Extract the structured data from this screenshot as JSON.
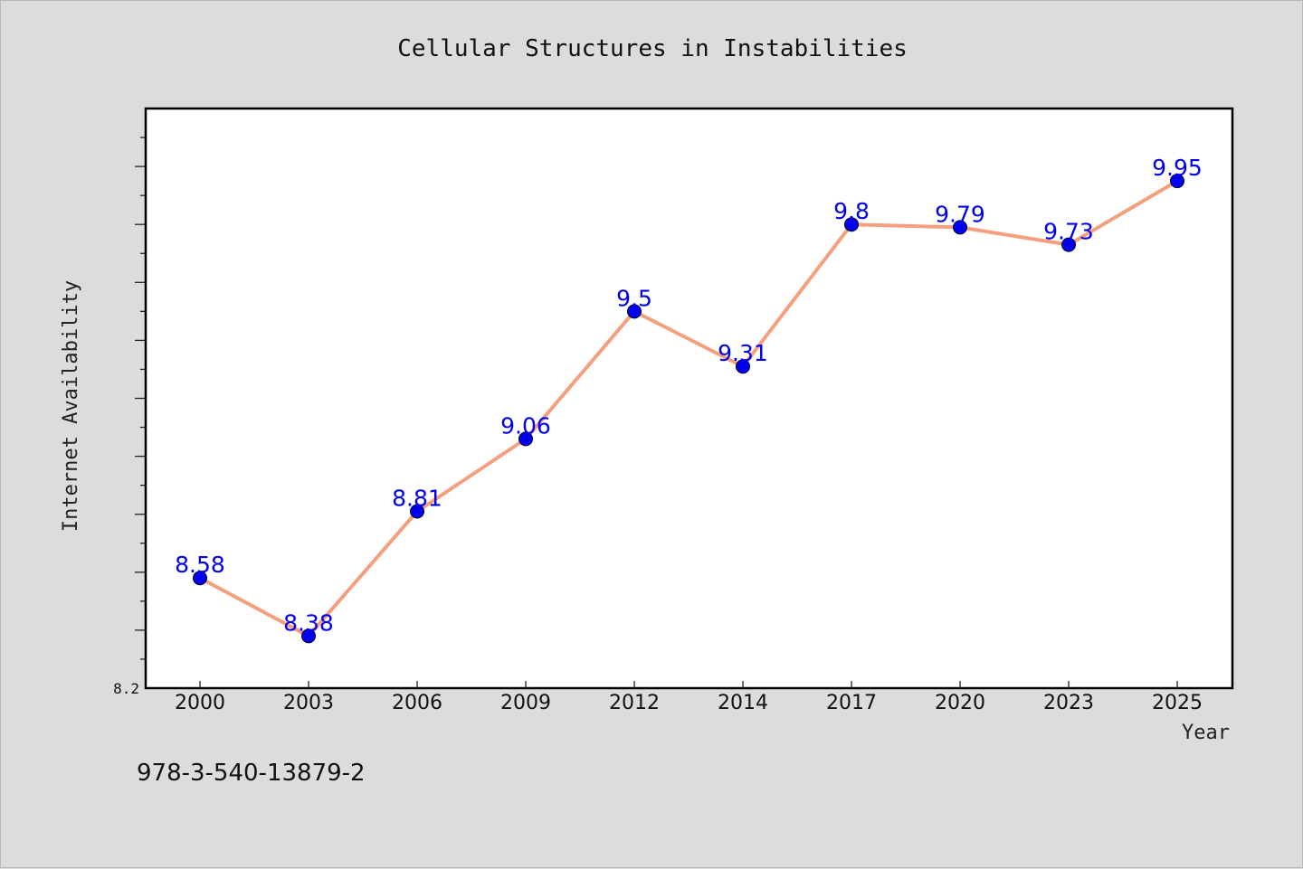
{
  "chart_data": {
    "type": "line",
    "title": "Cellular Structures in Instabilities",
    "xlabel": "Year",
    "ylabel": "Internet Availability",
    "categories": [
      "2000",
      "2003",
      "2006",
      "2009",
      "2012",
      "2014",
      "2017",
      "2020",
      "2023",
      "2025"
    ],
    "values": [
      8.58,
      8.38,
      8.81,
      9.06,
      9.5,
      9.31,
      9.8,
      9.79,
      9.73,
      9.95
    ],
    "data_labels": [
      "8.58",
      "8.38",
      "8.81",
      "9.06",
      "9.5",
      "9.31",
      "9.8",
      "9.79",
      "9.73",
      "9.95"
    ],
    "ylim": [
      8.2,
      10.2
    ],
    "y_tick_labels": [
      "8.2"
    ],
    "grid": false,
    "line_color": "#f4a07e",
    "marker_color": "#0000ee",
    "label_color": "#0000ee"
  },
  "footer": {
    "isbn": "978-3-540-13879-2"
  }
}
